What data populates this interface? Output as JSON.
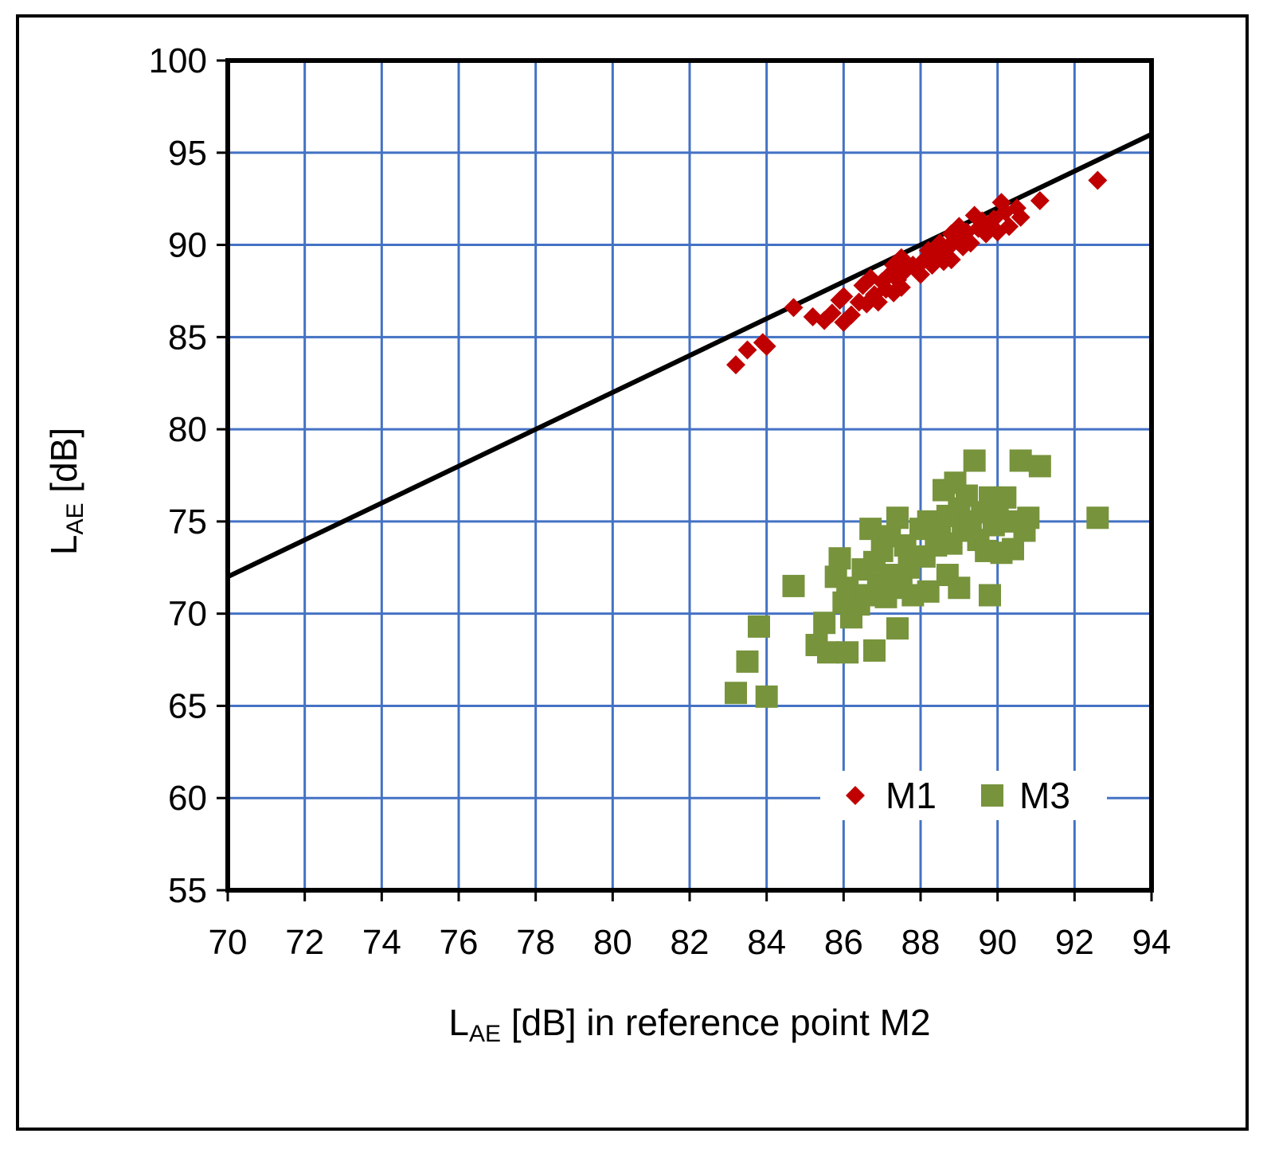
{
  "chart_data": {
    "type": "scatter",
    "title": "",
    "xlabel": {
      "main": "L",
      "sub": "AE",
      "rest": " [dB] in reference point M2"
    },
    "ylabel": {
      "main": "L",
      "sub": "AE",
      "rest": " [dB]"
    },
    "xlim": [
      70,
      94
    ],
    "ylim": [
      55,
      100
    ],
    "x_ticks": [
      70,
      72,
      74,
      76,
      78,
      80,
      82,
      84,
      86,
      88,
      90,
      92,
      94
    ],
    "y_ticks": [
      55,
      60,
      65,
      70,
      75,
      80,
      85,
      90,
      95,
      100
    ],
    "grid": true,
    "grid_color": "#4472C4",
    "legend_position": "bottom-right",
    "reference_line": {
      "x": [
        70,
        94
      ],
      "y": [
        72,
        96
      ],
      "color": "#000000"
    },
    "series": [
      {
        "name": "M1",
        "marker": "diamond",
        "color": "#C00000",
        "points": [
          [
            83.2,
            83.5
          ],
          [
            83.5,
            84.3
          ],
          [
            83.9,
            84.7
          ],
          [
            84.0,
            84.5
          ],
          [
            84.7,
            86.6
          ],
          [
            85.2,
            86.1
          ],
          [
            85.5,
            85.9
          ],
          [
            85.7,
            86.3
          ],
          [
            85.9,
            87.0
          ],
          [
            86.0,
            85.8
          ],
          [
            86.0,
            87.2
          ],
          [
            86.2,
            86.2
          ],
          [
            86.4,
            86.9
          ],
          [
            86.5,
            87.8
          ],
          [
            86.6,
            86.8
          ],
          [
            86.7,
            88.2
          ],
          [
            86.8,
            87.3
          ],
          [
            86.9,
            86.9
          ],
          [
            87.0,
            88.0
          ],
          [
            87.1,
            87.6
          ],
          [
            87.2,
            88.4
          ],
          [
            87.3,
            87.4
          ],
          [
            87.3,
            88.9
          ],
          [
            87.4,
            88.1
          ],
          [
            87.5,
            87.7
          ],
          [
            87.5,
            89.3
          ],
          [
            87.6,
            88.6
          ],
          [
            87.8,
            88.9
          ],
          [
            88.0,
            88.4
          ],
          [
            88.1,
            89.2
          ],
          [
            88.2,
            89.7
          ],
          [
            88.3,
            88.9
          ],
          [
            88.4,
            89.5
          ],
          [
            88.5,
            90.1
          ],
          [
            88.6,
            89.1
          ],
          [
            88.7,
            89.8
          ],
          [
            88.8,
            90.6
          ],
          [
            88.8,
            89.2
          ],
          [
            88.9,
            90.3
          ],
          [
            89.0,
            91.0
          ],
          [
            89.1,
            89.9
          ],
          [
            89.2,
            90.7
          ],
          [
            89.3,
            90.1
          ],
          [
            89.4,
            91.6
          ],
          [
            89.5,
            90.9
          ],
          [
            89.6,
            91.3
          ],
          [
            89.7,
            90.6
          ],
          [
            89.8,
            91.1
          ],
          [
            89.9,
            91.4
          ],
          [
            90.0,
            90.7
          ],
          [
            90.1,
            92.3
          ],
          [
            90.2,
            91.8
          ],
          [
            90.3,
            91.0
          ],
          [
            90.5,
            92.0
          ],
          [
            90.6,
            91.5
          ],
          [
            91.1,
            92.4
          ],
          [
            92.6,
            93.5
          ]
        ]
      },
      {
        "name": "M3",
        "marker": "square",
        "color": "#77933C",
        "points": [
          [
            83.2,
            65.7
          ],
          [
            83.5,
            67.4
          ],
          [
            83.8,
            69.3
          ],
          [
            84.0,
            65.5
          ],
          [
            84.7,
            71.5
          ],
          [
            85.3,
            68.3
          ],
          [
            85.5,
            69.5
          ],
          [
            85.6,
            67.9
          ],
          [
            85.8,
            72.0
          ],
          [
            85.9,
            73.0
          ],
          [
            86.0,
            70.6
          ],
          [
            86.1,
            67.9
          ],
          [
            86.1,
            71.4
          ],
          [
            86.2,
            69.8
          ],
          [
            86.4,
            70.5
          ],
          [
            86.5,
            72.4
          ],
          [
            86.6,
            71.0
          ],
          [
            86.7,
            74.6
          ],
          [
            86.8,
            68.0
          ],
          [
            86.8,
            72.8
          ],
          [
            86.9,
            71.6
          ],
          [
            87.0,
            73.4
          ],
          [
            87.1,
            70.9
          ],
          [
            87.2,
            74.2
          ],
          [
            87.3,
            72.1
          ],
          [
            87.4,
            69.2
          ],
          [
            87.4,
            75.2
          ],
          [
            87.5,
            71.4
          ],
          [
            87.6,
            73.7
          ],
          [
            87.7,
            72.5
          ],
          [
            87.8,
            71.0
          ],
          [
            88.0,
            74.6
          ],
          [
            88.1,
            73.1
          ],
          [
            88.2,
            75.0
          ],
          [
            88.2,
            71.2
          ],
          [
            88.4,
            73.7
          ],
          [
            88.5,
            74.3
          ],
          [
            88.6,
            76.7
          ],
          [
            88.7,
            75.3
          ],
          [
            88.7,
            72.1
          ],
          [
            88.8,
            73.8
          ],
          [
            88.9,
            77.1
          ],
          [
            89.0,
            75.7
          ],
          [
            89.0,
            71.4
          ],
          [
            89.1,
            74.5
          ],
          [
            89.2,
            76.4
          ],
          [
            89.3,
            75.0
          ],
          [
            89.4,
            78.3
          ],
          [
            89.5,
            74.0
          ],
          [
            89.6,
            75.5
          ],
          [
            89.7,
            73.4
          ],
          [
            89.8,
            71.0
          ],
          [
            89.8,
            76.3
          ],
          [
            89.9,
            74.8
          ],
          [
            90.0,
            75.9
          ],
          [
            90.1,
            73.3
          ],
          [
            90.2,
            76.3
          ],
          [
            90.3,
            75.0
          ],
          [
            90.4,
            73.5
          ],
          [
            90.6,
            78.3
          ],
          [
            90.7,
            74.5
          ],
          [
            90.8,
            75.2
          ],
          [
            91.1,
            78.0
          ],
          [
            92.6,
            75.2
          ]
        ]
      }
    ]
  }
}
